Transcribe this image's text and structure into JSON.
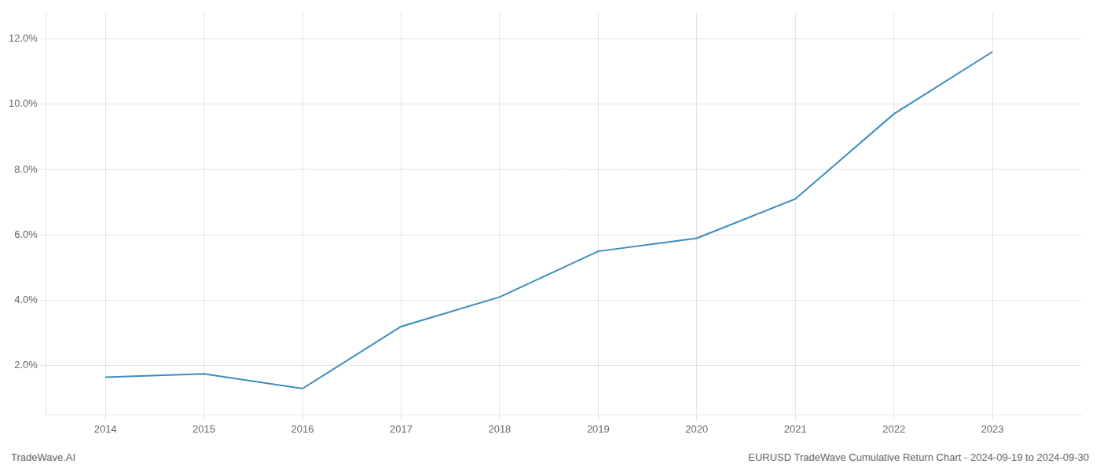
{
  "chart_data": {
    "type": "line",
    "x": [
      2014,
      2015,
      2016,
      2017,
      2018,
      2019,
      2020,
      2021,
      2022,
      2023
    ],
    "values": [
      0.0165,
      0.0175,
      0.013,
      0.032,
      0.041,
      0.055,
      0.059,
      0.071,
      0.097,
      0.116
    ],
    "color": "#3a8bbf",
    "xlim": [
      2013.4,
      2023.9
    ],
    "ylim": [
      0.005,
      0.128
    ],
    "xticks": [
      2014,
      2015,
      2016,
      2017,
      2018,
      2019,
      2020,
      2021,
      2022,
      2023
    ],
    "yticks": [
      {
        "value": 0.02,
        "label": "2.0%"
      },
      {
        "value": 0.04,
        "label": "4.0%"
      },
      {
        "value": 0.06,
        "label": "6.0%"
      },
      {
        "value": 0.08,
        "label": "8.0%"
      },
      {
        "value": 0.1,
        "label": "10.0%"
      },
      {
        "value": 0.12,
        "label": "12.0%"
      }
    ],
    "grid": true,
    "annotations": [
      "TradeWave.AI",
      "EURUSD TradeWave Cumulative Return Chart - 2024-09-19 to 2024-09-30"
    ]
  }
}
